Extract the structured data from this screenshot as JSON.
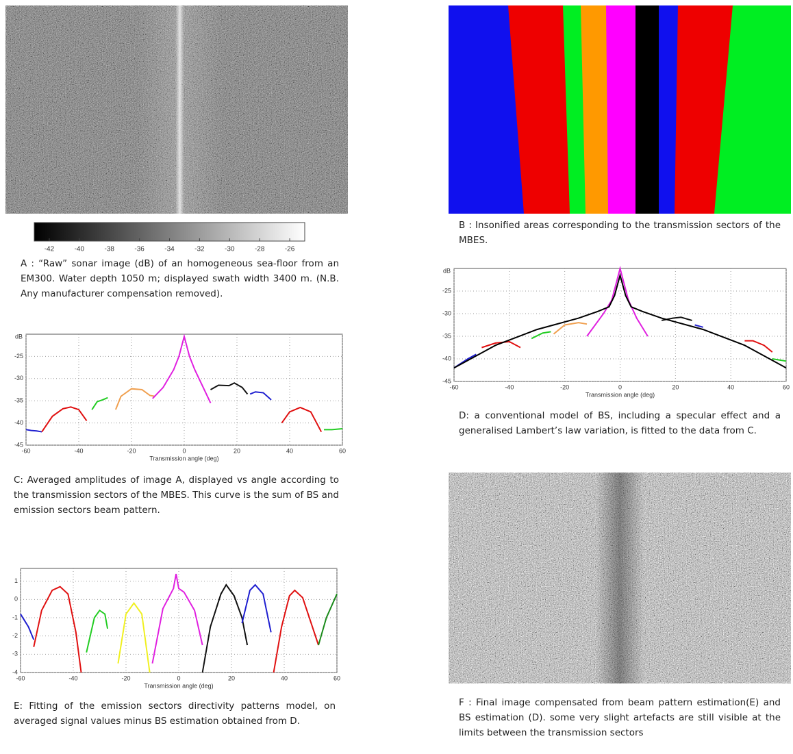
{
  "panel_a": {
    "caption": "A : “Raw” sonar image (dB) of an homogeneous sea-floor from an EM300. Water depth 1050 m; displayed swath width 3400 m. (N.B. Any manufacturer compensation removed).",
    "colorbar": {
      "lim": [
        -43,
        -25
      ],
      "ticks": [
        -42,
        -40,
        -38,
        -36,
        -34,
        -32,
        -30,
        -28,
        -26
      ]
    }
  },
  "panel_b": {
    "caption": "B : Insonified areas corresponding to the transmission sectors of the MBES."
  },
  "panel_c": {
    "caption": "C: Averaged amplitudes of image A, displayed vs angle according to the transmission sectors of the MBES. This curve is the sum of BS and emission sectors beam pattern."
  },
  "panel_d": {
    "caption": "D: a conventional model of BS, including a specular effect and a generalised Lambert’s law variation, is fitted to the data from C."
  },
  "panel_e": {
    "caption": "E: Fitting of the emission sectors directivity patterns model, on averaged signal values minus BS estimation obtained from D."
  },
  "panel_f": {
    "caption": "F : Final image compensated from beam pattern estimation(E) and BS estimation (D). some very slight artefacts are still visible at the limits between the transmission sectors"
  },
  "chart_data": [
    {
      "type": "line",
      "ylabel": "dB",
      "xlabel": "Transmission angle (deg)",
      "xlim": [
        -60,
        60
      ],
      "ylim": [
        -45,
        -20
      ],
      "xticks": [
        -60,
        -40,
        -20,
        0,
        20,
        40,
        60
      ],
      "yticks": [
        -25,
        -30,
        -35,
        -40,
        -45
      ],
      "grid": true,
      "series": [
        {
          "color": "#1f1fd0",
          "x": [
            -60,
            -58,
            -56,
            -54
          ],
          "values": [
            -41.5,
            -41.7,
            -41.8,
            -42
          ]
        },
        {
          "color": "#e01010",
          "x": [
            -54,
            -50,
            -46,
            -43,
            -40,
            -37
          ],
          "values": [
            -42,
            -38.5,
            -36.8,
            -36.4,
            -37,
            -39.5
          ]
        },
        {
          "color": "#22cc22",
          "x": [
            -35,
            -33,
            -31,
            -29
          ],
          "values": [
            -37,
            -35.2,
            -34.8,
            -34.3
          ]
        },
        {
          "color": "#f0a050",
          "x": [
            -26,
            -24,
            -20,
            -16,
            -13,
            -11
          ],
          "values": [
            -37,
            -34,
            -32.3,
            -32.5,
            -33.8,
            -34
          ]
        },
        {
          "color": "#e020e0",
          "x": [
            -12,
            -8,
            -4,
            -2,
            0,
            2,
            4,
            8,
            10
          ],
          "values": [
            -34.5,
            -32,
            -28,
            -25,
            -20.5,
            -25,
            -28,
            -33,
            -35.5
          ]
        },
        {
          "color": "#111111",
          "x": [
            10,
            13,
            17,
            19,
            22,
            24
          ],
          "values": [
            -32.5,
            -31.5,
            -31.6,
            -31,
            -32,
            -33.5
          ]
        },
        {
          "color": "#1f1fd0",
          "x": [
            25,
            27,
            30,
            33
          ],
          "values": [
            -33.5,
            -33,
            -33.2,
            -34.8
          ]
        },
        {
          "color": "#e01010",
          "x": [
            37,
            40,
            44,
            48,
            52
          ],
          "values": [
            -40,
            -37.5,
            -36.5,
            -37.5,
            -42
          ]
        },
        {
          "color": "#22cc22",
          "x": [
            53,
            56,
            60
          ],
          "values": [
            -41.5,
            -41.5,
            -41.3
          ]
        }
      ]
    },
    {
      "type": "line",
      "ylabel": "dB",
      "xlabel": "Transmission angle (deg)",
      "xlim": [
        -60,
        60
      ],
      "ylim": [
        -45,
        -20
      ],
      "xticks": [
        -60,
        -40,
        -20,
        0,
        20,
        40,
        60
      ],
      "yticks": [
        -25,
        -30,
        -35,
        -40,
        -45
      ],
      "grid": true,
      "series": [
        {
          "color": "#1f1fd0",
          "x": [
            -60,
            -55,
            -52
          ],
          "values": [
            -42,
            -40,
            -39
          ]
        },
        {
          "color": "#e01010",
          "x": [
            -50,
            -45,
            -40,
            -36
          ],
          "values": [
            -37.5,
            -36.5,
            -36.2,
            -37.5
          ]
        },
        {
          "color": "#22cc22",
          "x": [
            -32,
            -28,
            -25
          ],
          "values": [
            -35.5,
            -34.3,
            -34
          ]
        },
        {
          "color": "#f0a050",
          "x": [
            -24,
            -20,
            -15,
            -12
          ],
          "values": [
            -34.5,
            -32.5,
            -32,
            -32.3
          ]
        },
        {
          "color": "#e020e0",
          "x": [
            -12,
            -6,
            -3,
            0,
            3,
            6,
            10
          ],
          "values": [
            -35,
            -30,
            -27,
            -20,
            -27,
            -31,
            -35
          ]
        },
        {
          "color": "#111111",
          "x": [
            15,
            19,
            22,
            26
          ],
          "values": [
            -31.5,
            -31,
            -30.8,
            -31.5
          ]
        },
        {
          "color": "#1f1fd0",
          "x": [
            27,
            30
          ],
          "values": [
            -32.5,
            -33
          ]
        },
        {
          "color": "#e01010",
          "x": [
            45,
            48,
            52,
            55
          ],
          "values": [
            -36,
            -36,
            -37,
            -38.5
          ]
        },
        {
          "color": "#22cc22",
          "x": [
            55,
            58,
            60
          ],
          "values": [
            -40,
            -40.3,
            -40.5
          ]
        },
        {
          "color": "#000000",
          "x": [
            -60,
            -45,
            -30,
            -15,
            -8,
            -4,
            -2,
            0,
            2,
            4,
            8,
            15,
            30,
            45,
            60
          ],
          "values": [
            -42,
            -37,
            -33.5,
            -31,
            -29.5,
            -28.5,
            -26,
            -21.5,
            -26,
            -28.5,
            -29.5,
            -31,
            -33.5,
            -37,
            -42
          ]
        }
      ]
    },
    {
      "type": "line",
      "xlabel": "Transmission angle (deg)",
      "xlim": [
        -60,
        60
      ],
      "ylim": [
        -4,
        1.7
      ],
      "xticks": [
        -60,
        -40,
        -20,
        0,
        20,
        40,
        60
      ],
      "yticks": [
        1,
        0,
        -1,
        -2,
        -3,
        -4
      ],
      "grid": true,
      "series": [
        {
          "color": "#1f1fd0",
          "x": [
            -60,
            -57,
            -55
          ],
          "values": [
            -0.8,
            -1.5,
            -2.2
          ]
        },
        {
          "color": "#e01010",
          "x": [
            -55,
            -52,
            -48,
            -45,
            -42,
            -39,
            -37
          ],
          "values": [
            -2.6,
            -0.6,
            0.5,
            0.7,
            0.3,
            -1.8,
            -4
          ]
        },
        {
          "color": "#22cc22",
          "x": [
            -35,
            -32,
            -30,
            -28,
            -27
          ],
          "values": [
            -2.9,
            -1,
            -0.6,
            -0.8,
            -1.6
          ]
        },
        {
          "color": "#f0f020",
          "x": [
            -23,
            -20,
            -17,
            -14,
            -11
          ],
          "values": [
            -3.5,
            -0.8,
            -0.2,
            -0.8,
            -4
          ]
        },
        {
          "color": "#e020e0",
          "x": [
            -10,
            -6,
            -2,
            -1,
            0,
            2,
            6,
            9
          ],
          "values": [
            -3.5,
            -0.5,
            0.6,
            1.4,
            0.6,
            0.4,
            -0.6,
            -2.5
          ]
        },
        {
          "color": "#111111",
          "x": [
            9,
            12,
            16,
            18,
            21,
            24,
            26
          ],
          "values": [
            -4,
            -1.5,
            0.3,
            0.8,
            0.2,
            -1,
            -2.5
          ]
        },
        {
          "color": "#1f1fd0",
          "x": [
            24,
            27,
            29,
            32,
            35
          ],
          "values": [
            -1.3,
            0.5,
            0.8,
            0.3,
            -1.8
          ]
        },
        {
          "color": "#e01010",
          "x": [
            36,
            39,
            42,
            44,
            47,
            50,
            53
          ],
          "values": [
            -4,
            -1.5,
            0.2,
            0.5,
            0.1,
            -1.2,
            -2.5
          ]
        },
        {
          "color": "#1a8a1a",
          "x": [
            53,
            56,
            60
          ],
          "values": [
            -2.5,
            -1,
            0.3
          ]
        }
      ]
    }
  ]
}
